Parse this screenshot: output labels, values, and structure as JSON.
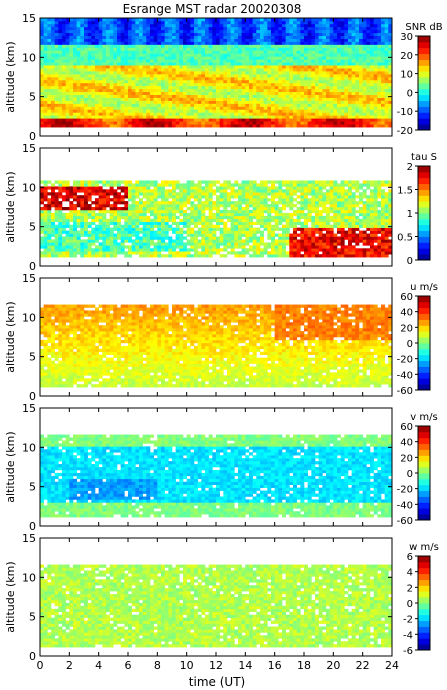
{
  "title": "Esrange MST radar 20020308",
  "chart_data": {
    "type": "heatmap",
    "title": "Esrange MST radar 20020308",
    "xlabel": "time (UT)",
    "xlim": [
      0,
      24
    ],
    "x_ticks": [
      "0",
      "2",
      "4",
      "6",
      "8",
      "10",
      "12",
      "14",
      "16",
      "18",
      "20",
      "22",
      "24"
    ],
    "panels": [
      {
        "ylabel": "altitude (km)",
        "ylim": [
          0,
          15
        ],
        "y_ticks": [
          "0",
          "5",
          "10",
          "15"
        ],
        "colorbar": {
          "label": "SNR dB",
          "range": [
            -20,
            30
          ],
          "ticks": [
            "-20",
            "-10",
            "0",
            "10",
            "20",
            "30"
          ]
        },
        "description_values": "Signal strength: high (~25 dB) near 1-2 km, 10-15 dB between 3-9 km, near -10 dB above 12 km"
      },
      {
        "ylabel": "altitude (km)",
        "ylim": [
          0,
          15
        ],
        "y_ticks": [
          "0",
          "5",
          "10",
          "15"
        ],
        "colorbar": {
          "label": "tau S",
          "range": [
            0,
            2
          ],
          "ticks": [
            "0",
            "0.5",
            "1",
            "1.5",
            "2"
          ]
        },
        "description_values": "Correlation time ~1 s in most of 2-10 km; up to 2 s near 7-10 km before 6 UT and below 5 km after 17 UT"
      },
      {
        "ylabel": "altitude (km)",
        "ylim": [
          0,
          15
        ],
        "y_ticks": [
          "0",
          "5",
          "10",
          "15"
        ],
        "colorbar": {
          "label": "u m/s",
          "range": [
            -60,
            60
          ],
          "ticks": [
            "-60",
            "-40",
            "-20",
            "0",
            "20",
            "40",
            "60"
          ]
        },
        "description_values": "Zonal wind ~10 m/s at low altitudes increasing to ~30-40 m/s near 8-11 km after 16 UT"
      },
      {
        "ylabel": "altitude (km)",
        "ylim": [
          0,
          15
        ],
        "y_ticks": [
          "0",
          "5",
          "10",
          "15"
        ],
        "colorbar": {
          "label": "v m/s",
          "range": [
            -60,
            60
          ],
          "ticks": [
            "-60",
            "-40",
            "-20",
            "0",
            "20",
            "40",
            "60"
          ]
        },
        "description_values": "Meridional wind ~-10 to -25 m/s between 3-10 km, near 0 below 2 km"
      },
      {
        "ylabel": "altitude (km)",
        "ylim": [
          0,
          15
        ],
        "y_ticks": [
          "0",
          "5",
          "10",
          "15"
        ],
        "colorbar": {
          "label": "w m/s",
          "range": [
            -6,
            6
          ],
          "ticks": [
            "-6",
            "-4",
            "-2",
            "0",
            "2",
            "4",
            "6"
          ]
        },
        "description_values": "Vertical wind near 0 to +1 m/s throughout"
      }
    ]
  }
}
